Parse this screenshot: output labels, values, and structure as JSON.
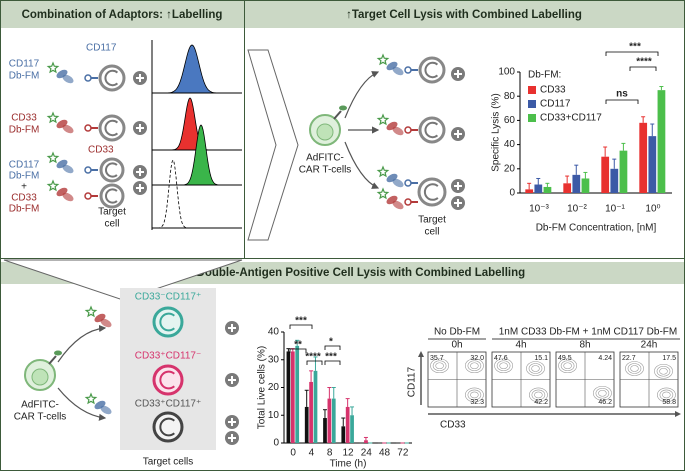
{
  "left_panel": {
    "title": "Combination of Adaptors: ↑Labelling",
    "cd117": "CD117",
    "cd117_dbfm": [
      "CD117",
      "Db-FM"
    ],
    "cd33_dbfm": [
      "CD33",
      "Db-FM"
    ],
    "cd33": "CD33",
    "combo": [
      "CD117",
      "Db-FM",
      "+",
      "CD33",
      "Db-FM"
    ],
    "target": [
      "Target",
      "cell"
    ]
  },
  "right_panel": {
    "title": "↑Target Cell Lysis with Combined Labelling",
    "car_t": [
      "AdFITC-",
      "CAR T-cells"
    ],
    "target": [
      "Target",
      "cell"
    ]
  },
  "bottom_panel": {
    "title": "Faster Double-Antigen Positive Cell Lysis with Combined Labelling",
    "car_t": [
      "AdFITC-",
      "CAR T-cells"
    ],
    "cell_types": [
      "CD33⁻CD117⁺",
      "CD33⁺CD117⁻",
      "CD33⁺CD117⁺"
    ],
    "target_cells": "Target cells",
    "flow": {
      "group_labels": [
        "No Db-FM",
        "1nM CD33 Db-FM + 1nM CD117 Db-FM"
      ],
      "y_label": "CD117",
      "x_label": "CD33",
      "plots": [
        {
          "title": "0h",
          "quadrants": [
            "35.7",
            "32.0",
            "32.3"
          ]
        },
        {
          "title": "4h",
          "quadrants": [
            "47.6",
            "15.1",
            "42.2"
          ]
        },
        {
          "title": "8h",
          "quadrants": [
            "49.5",
            "4.24",
            "46.2"
          ]
        },
        {
          "title": "24h",
          "quadrants": [
            "22.7",
            "17.5",
            "58.8"
          ]
        }
      ]
    }
  },
  "chart_data": [
    {
      "type": "bar",
      "y_label": "Specific Lysis (%)",
      "x_label": "Db-FM Concentration, [nM]",
      "legend_title": "Db-FM:",
      "categories": [
        "10⁻³",
        "10⁻²",
        "10⁻¹",
        "10⁰"
      ],
      "series": [
        {
          "name": "CD33",
          "color": "#e8312f",
          "values": [
            3,
            8,
            30,
            58
          ],
          "errors": [
            5,
            6,
            8,
            5
          ]
        },
        {
          "name": "CD117",
          "color": "#3c5aa6",
          "values": [
            7,
            15,
            20,
            47
          ],
          "errors": [
            5,
            8,
            8,
            10
          ]
        },
        {
          "name": "CD33+CD117",
          "color": "#4cbf4b",
          "values": [
            5,
            12,
            35,
            85
          ],
          "errors": [
            3,
            5,
            6,
            3
          ]
        }
      ],
      "ylim": [
        0,
        100
      ],
      "yticks": [
        0,
        20,
        40,
        60,
        80,
        100
      ],
      "annotations": [
        "ns",
        "****",
        "***"
      ],
      "grid": false
    },
    {
      "type": "bar",
      "y_label": "Total Live cells (%)",
      "x_label": "Time (h)",
      "categories": [
        "0",
        "4",
        "8",
        "12",
        "24",
        "48",
        "72"
      ],
      "series": [
        {
          "color": "#111111",
          "values": [
            33,
            13,
            9,
            6,
            0,
            0,
            0
          ],
          "errors": [
            1,
            6,
            3,
            3,
            0,
            0,
            0
          ]
        },
        {
          "color": "#d6336c",
          "values": [
            33,
            22,
            16,
            13,
            1,
            0,
            0
          ],
          "errors": [
            1,
            4,
            4,
            3,
            1,
            0,
            0
          ]
        },
        {
          "color": "#3aa89a",
          "values": [
            35,
            26,
            16,
            10,
            0,
            0,
            0
          ],
          "errors": [
            2,
            5,
            4,
            3,
            0,
            0,
            0
          ]
        }
      ],
      "ylim": [
        0,
        40
      ],
      "yticks": [
        0,
        10,
        20,
        30,
        40
      ],
      "annotations": [
        "***",
        "**",
        "****",
        "*",
        "***"
      ],
      "grid": false
    }
  ]
}
